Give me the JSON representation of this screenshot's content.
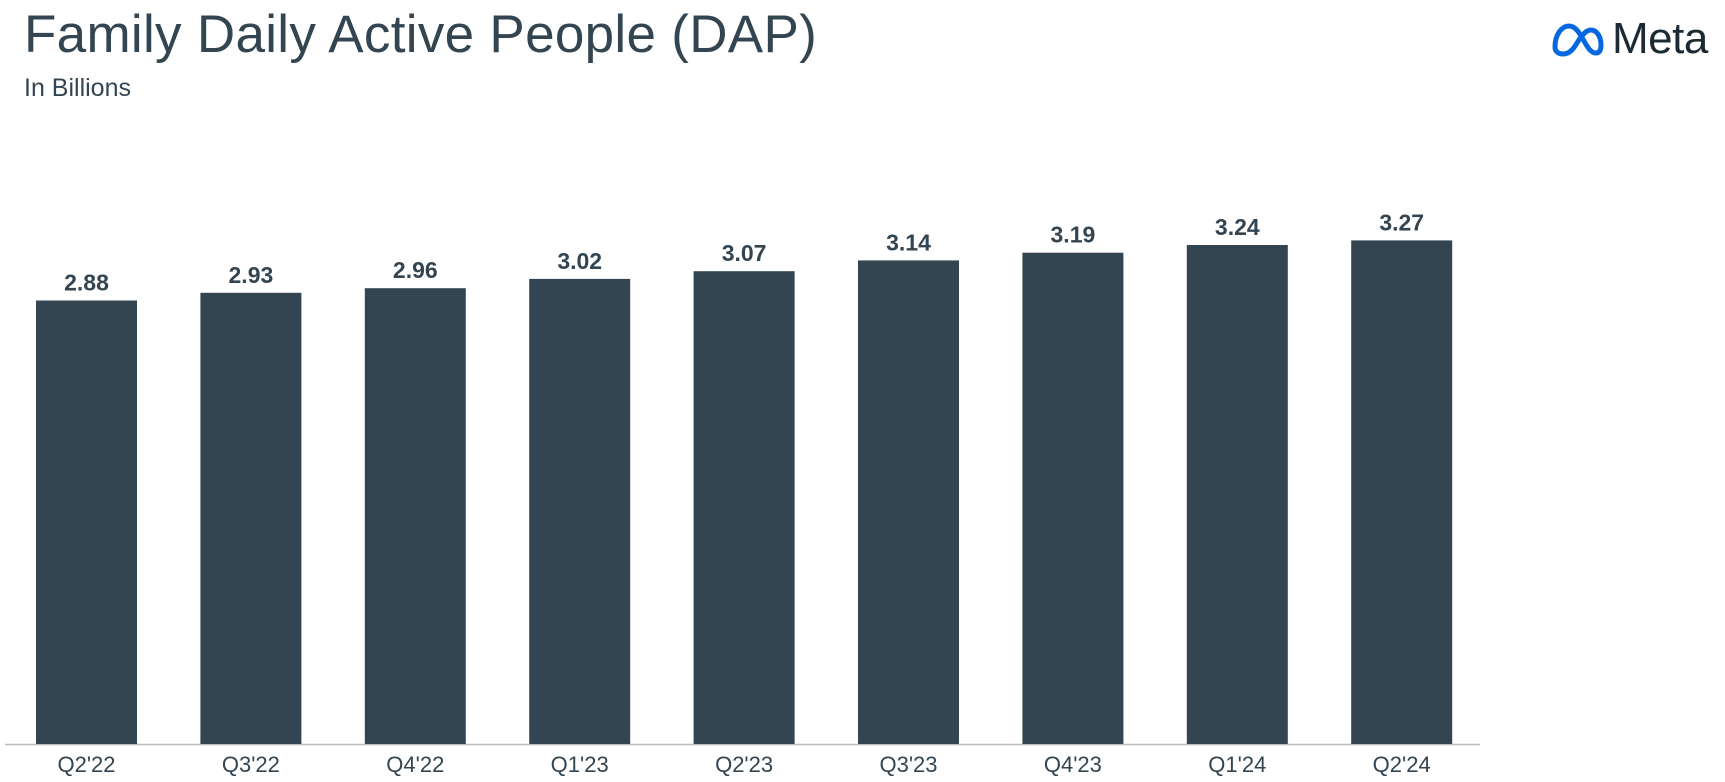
{
  "header": {
    "title": "Family Daily Active People (DAP)",
    "subtitle": "In Billions"
  },
  "brand": {
    "logo_text": "Meta",
    "logo_icon": "meta-infinity-logo",
    "logo_color": "#0668E1"
  },
  "colors": {
    "bar": "#344552",
    "text": "#344552",
    "axis": "#b8bcc0"
  },
  "chart_data": {
    "type": "bar",
    "title": "Family Daily Active People (DAP)",
    "subtitle": "In Billions",
    "categories": [
      "Q2'22",
      "Q3'22",
      "Q4'22",
      "Q1'23",
      "Q2'23",
      "Q3'23",
      "Q4'23",
      "Q1'24",
      "Q2'24"
    ],
    "values": [
      2.88,
      2.93,
      2.96,
      3.02,
      3.07,
      3.14,
      3.19,
      3.24,
      3.27
    ],
    "value_labels": [
      "2.88",
      "2.93",
      "2.96",
      "3.02",
      "3.07",
      "3.14",
      "3.19",
      "3.24",
      "3.27"
    ],
    "xlabel": "",
    "ylabel": "",
    "ylim": [
      0,
      3.7
    ],
    "grid": false,
    "legend": "none"
  }
}
